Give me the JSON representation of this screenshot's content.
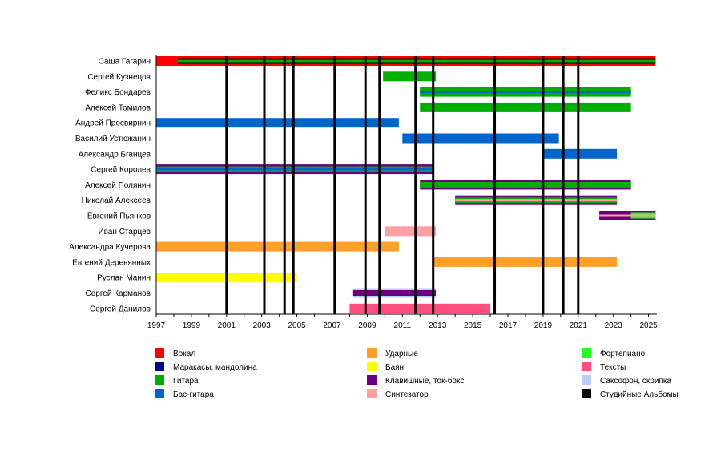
{
  "chart_data": {
    "type": "timeline",
    "title": "",
    "xlim": [
      1997,
      2025.4
    ],
    "x_ticks": [
      1997,
      1999,
      2001,
      2003,
      2005,
      2007,
      2009,
      2011,
      2013,
      2015,
      2017,
      2019,
      2021,
      2023,
      2025
    ],
    "colors": {
      "vocal": "#ff0000",
      "maracas": "#000099",
      "guitar": "#00b000",
      "bass": "#0066cc",
      "drums": "#ffa02a",
      "bayan": "#ffff00",
      "keys": "#6a0080",
      "synth": "#ffa0a4",
      "piano": "#22ff22",
      "lyrics": "#ff4f7f",
      "sax": "#b8ccff",
      "albums": "#000000"
    },
    "legend": [
      {
        "key": "vocal",
        "label": "Вокал"
      },
      {
        "key": "maracas",
        "label": "Маракасы, мандолина"
      },
      {
        "key": "guitar",
        "label": "Гитара"
      },
      {
        "key": "bass",
        "label": "Бас-гитара"
      },
      {
        "key": "drums",
        "label": "Ударные"
      },
      {
        "key": "bayan",
        "label": "Баян"
      },
      {
        "key": "keys",
        "label": "Клавишные, ток-бокс"
      },
      {
        "key": "synth",
        "label": "Синтезатор"
      },
      {
        "key": "piano",
        "label": "Фортепиано"
      },
      {
        "key": "lyrics",
        "label": "Тексты"
      },
      {
        "key": "sax",
        "label": "Саксофон, скрипка"
      },
      {
        "key": "albums",
        "label": "Студийные Альбомы"
      }
    ],
    "albums": [
      2001.0,
      2003.15,
      2004.3,
      2004.8,
      2007.15,
      2008.9,
      2009.7,
      2011.75,
      2012.75,
      2016.25,
      2019.0,
      2020.15,
      2021.0
    ],
    "members": [
      {
        "name": "Саша Гагарин",
        "segments": [
          {
            "start": 1997,
            "end": 1998.2,
            "layers": [
              "vocal"
            ]
          },
          {
            "start": 1998.2,
            "end": 2025.4,
            "layers": [
              "vocal",
              "albums",
              "guitar"
            ]
          }
        ]
      },
      {
        "name": "Сергей Кузнецов",
        "segments": [
          {
            "start": 2009.9,
            "end": 2012.9,
            "layers": [
              "guitar"
            ]
          }
        ]
      },
      {
        "name": "Феликс Бондарев",
        "segments": [
          {
            "start": 2012.0,
            "end": 2024.0,
            "layers": [
              "guitar",
              "guitar",
              "bass"
            ]
          }
        ]
      },
      {
        "name": "Алексей Томилов",
        "segments": [
          {
            "start": 2012.0,
            "end": 2024.0,
            "layers": [
              "guitar"
            ]
          }
        ]
      },
      {
        "name": "Андрей Просвирнин",
        "segments": [
          {
            "start": 1997,
            "end": 2010.8,
            "layers": [
              "bass"
            ]
          }
        ]
      },
      {
        "name": "Василий Устюжанин",
        "segments": [
          {
            "start": 2011.0,
            "end": 2019.9,
            "layers": [
              "bass"
            ]
          }
        ]
      },
      {
        "name": "Александр Бганцев",
        "segments": [
          {
            "start": 2019.0,
            "end": 2023.2,
            "layers": [
              "bass"
            ]
          }
        ]
      },
      {
        "name": "Сергей Королев",
        "segments": [
          {
            "start": 1997,
            "end": 2012.8,
            "layers": [
              "keys",
              "guitar",
              "bass"
            ]
          }
        ]
      },
      {
        "name": "Алексей Полянин",
        "segments": [
          {
            "start": 2012.0,
            "end": 2024.0,
            "layers": [
              "keys",
              "guitar"
            ]
          }
        ]
      },
      {
        "name": "Николай Алексеев",
        "segments": [
          {
            "start": 2014.0,
            "end": 2023.2,
            "layers": [
              "keys",
              "guitar",
              "synth"
            ]
          }
        ]
      },
      {
        "name": "Евгений Пьянков",
        "segments": [
          {
            "start": 2022.2,
            "end": 2024.0,
            "layers": [
              "keys",
              "keys",
              "synth"
            ]
          },
          {
            "start": 2024.0,
            "end": 2025.4,
            "layers": [
              "keys",
              "piano",
              "synth"
            ]
          }
        ]
      },
      {
        "name": "Иван Старцев",
        "segments": [
          {
            "start": 2010.0,
            "end": 2012.9,
            "layers": [
              "synth"
            ]
          }
        ]
      },
      {
        "name": "Александра Кучерова",
        "segments": [
          {
            "start": 1997,
            "end": 2010.8,
            "layers": [
              "drums"
            ]
          }
        ]
      },
      {
        "name": "Евгений Деревянных",
        "segments": [
          {
            "start": 2012.75,
            "end": 2023.2,
            "layers": [
              "drums"
            ]
          }
        ]
      },
      {
        "name": "Руслан Манин",
        "segments": [
          {
            "start": 1997,
            "end": 2005.0,
            "layers": [
              "bayan"
            ]
          }
        ]
      },
      {
        "name": "Сергей Карманов",
        "segments": [
          {
            "start": 2008.2,
            "end": 2012.9,
            "layers": [
              "sax",
              "keys"
            ]
          }
        ]
      },
      {
        "name": "Сергей Данилов",
        "segments": [
          {
            "start": 2008.0,
            "end": 2016.0,
            "layers": [
              "lyrics"
            ]
          }
        ]
      }
    ]
  }
}
